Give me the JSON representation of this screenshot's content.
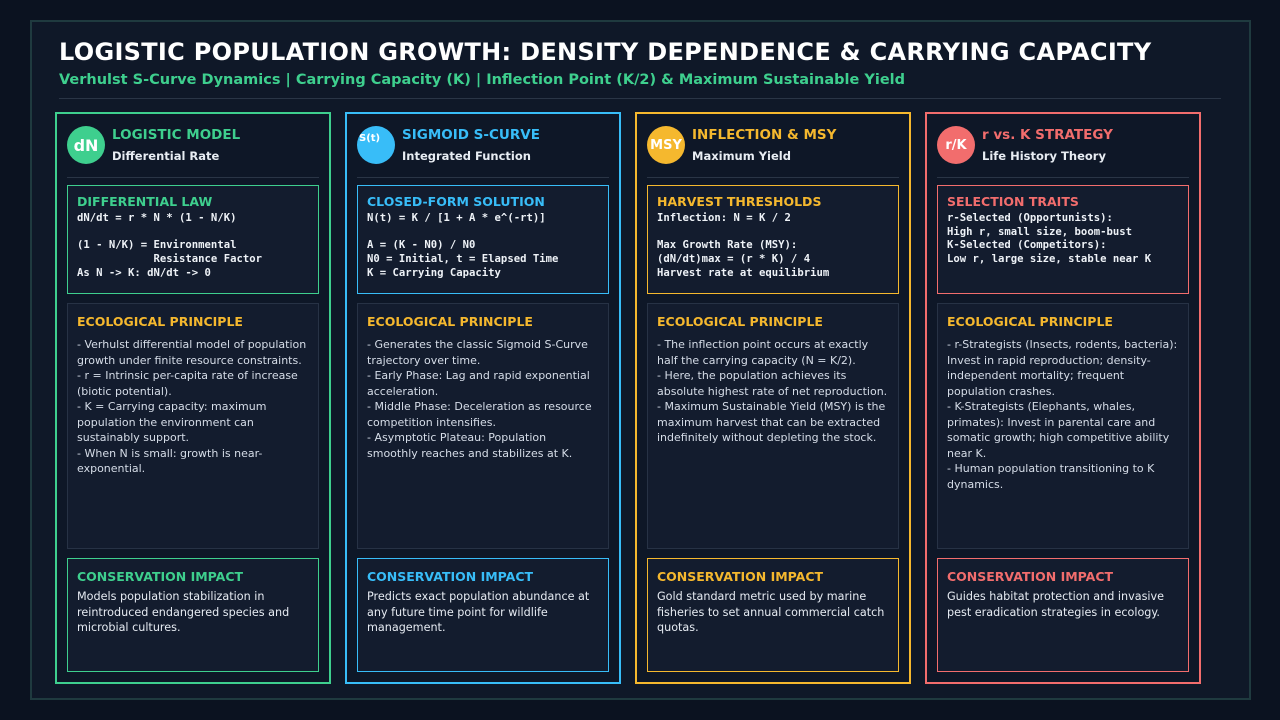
{
  "header": {
    "title": "LOGISTIC POPULATION GROWTH: DENSITY DEPENDENCE & CARRYING CAPACITY",
    "subtitle": "Verhulst S-Curve Dynamics | Carrying Capacity (K) | Inflection Point (K/2) & Maximum Sustainable Yield"
  },
  "principle_title": "ECOLOGICAL PRINCIPLE",
  "impact_title": "CONSERVATION IMPACT",
  "columns": [
    {
      "color": "#3ecf8e",
      "badge": "dN",
      "title": "LOGISTIC MODEL",
      "subtitle": "Differential Rate",
      "formula_title": "DIFFERENTIAL LAW",
      "formula": "dN/dt = r * N * (1 - N/K)\n\n(1 - N/K) = Environmental\n            Resistance Factor\nAs N -> K: dN/dt -> 0",
      "principles": [
        "- Verhulst differential model of population growth under finite resource constraints.",
        "- r = Intrinsic per-capita rate of increase (biotic potential).",
        "- K = Carrying capacity: maximum population the environment can sustainably support.",
        "- When N is small: growth is near-exponential."
      ],
      "impact": "Models population stabilization in reintroduced endangered species and microbial cultures."
    },
    {
      "color": "#38bdf8",
      "badge": "S(t)",
      "title": "SIGMOID S-CURVE",
      "subtitle": "Integrated Function",
      "formula_title": "CLOSED-FORM SOLUTION",
      "formula": "N(t) = K / [1 + A * e^(-rt)]\n\nA = (K - N0) / N0\nN0 = Initial, t = Elapsed Time\nK = Carrying Capacity",
      "principles": [
        "- Generates the classic Sigmoid S-Curve trajectory over time.",
        "- Early Phase: Lag and rapid exponential acceleration.",
        "- Middle Phase: Deceleration as resource competition intensifies.",
        "- Asymptotic Plateau: Population smoothly reaches and stabilizes at K."
      ],
      "impact": "Predicts exact population abundance at any future time point for wildlife management."
    },
    {
      "color": "#f5b82e",
      "badge": "MSY",
      "title": "INFLECTION & MSY",
      "subtitle": "Maximum Yield",
      "formula_title": "HARVEST THRESHOLDS",
      "formula": "Inflection: N = K / 2\n\nMax Growth Rate (MSY):\n(dN/dt)max = (r * K) / 4\nHarvest rate at equilibrium",
      "principles": [
        "- The inflection point occurs at exactly half the carrying capacity (N = K/2).",
        "- Here, the population achieves its absolute highest rate of net reproduction.",
        "- Maximum Sustainable Yield (MSY) is the maximum harvest that can be extracted indefinitely without depleting the stock."
      ],
      "impact": "Gold standard metric used by marine fisheries to set annual commercial catch quotas."
    },
    {
      "color": "#f26d6d",
      "badge": "r/K",
      "title": "r vs. K STRATEGY",
      "subtitle": "Life History Theory",
      "formula_title": "SELECTION TRAITS",
      "formula": "r-Selected (Opportunists):\nHigh r, small size, boom-bust\nK-Selected (Competitors):\nLow r, large size, stable near K",
      "principles": [
        "- r-Strategists (Insects, rodents, bacteria): Invest in rapid reproduction; density-independent mortality; frequent population crashes.",
        "- K-Strategists (Elephants, whales, primates): Invest in parental care and somatic growth; high competitive ability near K.",
        "- Human population transitioning to K dynamics."
      ],
      "impact": "Guides habitat protection and invasive pest eradication strategies in ecology."
    }
  ]
}
